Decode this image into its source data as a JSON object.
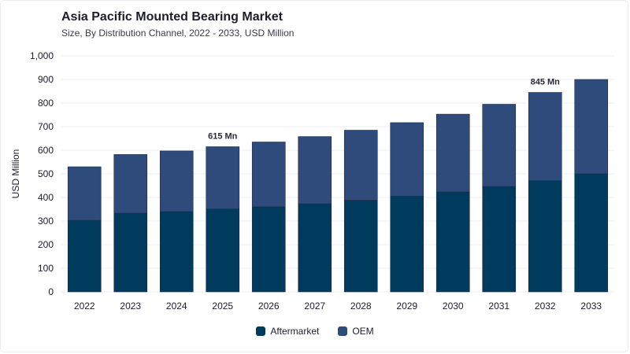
{
  "header": {
    "title": "Asia Pacific Mounted Bearing Market",
    "subtitle": "Size, By Distribution Channel, 2022 - 2033, USD Million"
  },
  "colors": {
    "aftermarket": "#003a5c",
    "oem": "#2e4b7c",
    "grid": "#ececf0",
    "text": "#1d1d2b"
  },
  "chart_data": {
    "type": "bar",
    "stacked": true,
    "title": "Asia Pacific Mounted Bearing Market",
    "subtitle": "Size, By Distribution Channel, 2022 - 2033, USD Million",
    "xlabel": "",
    "ylabel": "USD Million",
    "ylim": [
      0,
      1000
    ],
    "yticks": [
      "0",
      "100",
      "200",
      "300",
      "400",
      "500",
      "600",
      "700",
      "800",
      "900",
      "1,000"
    ],
    "grid": true,
    "legend_position": "bottom",
    "categories": [
      "2022",
      "2023",
      "2024",
      "2025",
      "2026",
      "2027",
      "2028",
      "2029",
      "2030",
      "2031",
      "2032",
      "2033"
    ],
    "series": [
      {
        "name": "Aftermarket",
        "values": [
          303,
          333,
          340,
          351,
          360,
          373,
          388,
          405,
          423,
          446,
          471,
          500
        ]
      },
      {
        "name": "OEM",
        "values": [
          227,
          249,
          257,
          264,
          275,
          285,
          297,
          312,
          330,
          349,
          374,
          400
        ]
      }
    ],
    "annotations": [
      {
        "category": "2025",
        "text": "615 Mn"
      },
      {
        "category": "2032",
        "text": "845 Mn"
      }
    ]
  }
}
